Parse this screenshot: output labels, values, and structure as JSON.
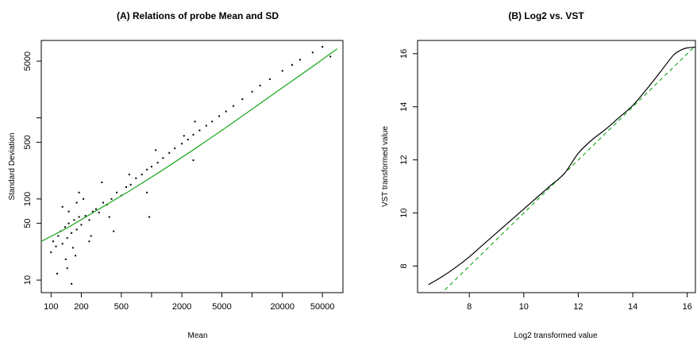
{
  "chart_data": [
    {
      "type": "scatter",
      "title": "(A) Relations of probe Mean and SD",
      "xlabel": "Mean",
      "ylabel": "Standard Deviation",
      "x_scale": "log",
      "y_scale": "log",
      "xlim": [
        80,
        80000
      ],
      "ylim": [
        7,
        9000
      ],
      "x_ticks": [
        100,
        200,
        500,
        2000,
        5000,
        20000,
        50000
      ],
      "x_tick_labels": [
        "100",
        "200",
        "500",
        "2000",
        "5000",
        "20000",
        "50000"
      ],
      "x_minor_ticks": [
        1000,
        10000
      ],
      "y_ticks": [
        10,
        50,
        100,
        500,
        5000
      ],
      "y_tick_labels": [
        "10",
        "50",
        "100",
        "500",
        "5000"
      ],
      "y_minor_ticks": [
        1000
      ],
      "colors": {
        "points": "#000000",
        "fit_line": "#22aa22"
      },
      "series": [
        {
          "kind": "points",
          "x": [
            100,
            105,
            112,
            118,
            125,
            130,
            138,
            145,
            150,
            160,
            170,
            180,
            190,
            200,
            220,
            240,
            260,
            280,
            300,
            330,
            360,
            400,
            450,
            500,
            560,
            620,
            700,
            800,
            900,
            1000,
            1150,
            1300,
            1500,
            1700,
            2000,
            2300,
            2600,
            3000,
            3500,
            4000,
            4700,
            5500,
            6500,
            8000,
            10000,
            12000,
            15000,
            20000,
            25000,
            30000,
            40000,
            50000,
            60000,
            115,
            140,
            165,
            150,
            130,
            210,
            250,
            190,
            175,
            320,
            380,
            145,
            160,
            1100,
            2600,
            420,
            180,
            600,
            900,
            2100,
            2700,
            950,
            240
          ],
          "y": [
            22,
            30,
            26,
            35,
            40,
            28,
            45,
            33,
            50,
            38,
            55,
            42,
            60,
            48,
            62,
            55,
            70,
            75,
            68,
            90,
            85,
            100,
            120,
            110,
            140,
            150,
            180,
            200,
            230,
            250,
            280,
            320,
            370,
            420,
            480,
            540,
            620,
            700,
            800,
            900,
            1050,
            1200,
            1400,
            1700,
            2100,
            2500,
            3000,
            3800,
            4500,
            5200,
            6400,
            7500,
            5700,
            12,
            18,
            25,
            70,
            80,
            100,
            35,
            120,
            20,
            160,
            60,
            14,
            9,
            400,
            300,
            40,
            90,
            200,
            120,
            600,
            900,
            60,
            30
          ]
        },
        {
          "kind": "fit_line",
          "x": [
            80,
            150,
            300,
            600,
            1200,
            2500,
            5000,
            10000,
            20000,
            40000,
            70000
          ],
          "y": [
            30,
            45,
            75,
            125,
            215,
            390,
            700,
            1280,
            2350,
            4300,
            7100
          ]
        }
      ]
    },
    {
      "type": "line",
      "title": "(B) Log2 vs. VST",
      "xlabel": "Log2 transformed value",
      "ylabel": "VST transformed value",
      "xlim": [
        6.1,
        16.3
      ],
      "ylim": [
        7.0,
        16.5
      ],
      "x_ticks": [
        8,
        10,
        12,
        14,
        16
      ],
      "y_ticks": [
        8,
        10,
        12,
        14,
        16
      ],
      "colors": {
        "vst_curve": "#000000",
        "identity_line": "#22aa22"
      },
      "series": [
        {
          "kind": "solid",
          "x": [
            6.5,
            7.0,
            7.5,
            8.0,
            8.5,
            9.0,
            9.5,
            10.0,
            10.5,
            11.0,
            11.5,
            12.0,
            12.5,
            13.0,
            13.5,
            14.0,
            14.5,
            15.0,
            15.5,
            15.8,
            16.0,
            16.3
          ],
          "y": [
            7.3,
            7.6,
            7.95,
            8.35,
            8.8,
            9.25,
            9.7,
            10.15,
            10.6,
            11.05,
            11.5,
            12.25,
            12.75,
            13.15,
            13.6,
            14.05,
            14.65,
            15.3,
            15.95,
            16.15,
            16.22,
            16.25
          ]
        },
        {
          "kind": "dashed",
          "x": [
            7.1,
            16.3
          ],
          "y": [
            7.1,
            16.3
          ]
        }
      ]
    }
  ]
}
